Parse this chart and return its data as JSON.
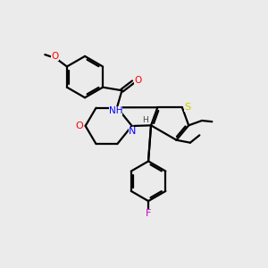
{
  "background_color": "#ebebeb",
  "bond_color": "#000000",
  "figsize": [
    3.0,
    3.0
  ],
  "dpi": 100,
  "atom_colors": {
    "O": "#ff0000",
    "N": "#0000ff",
    "S": "#cccc00",
    "F": "#cc00cc",
    "H": "#444444",
    "C": "#000000"
  },
  "lw": 1.6
}
